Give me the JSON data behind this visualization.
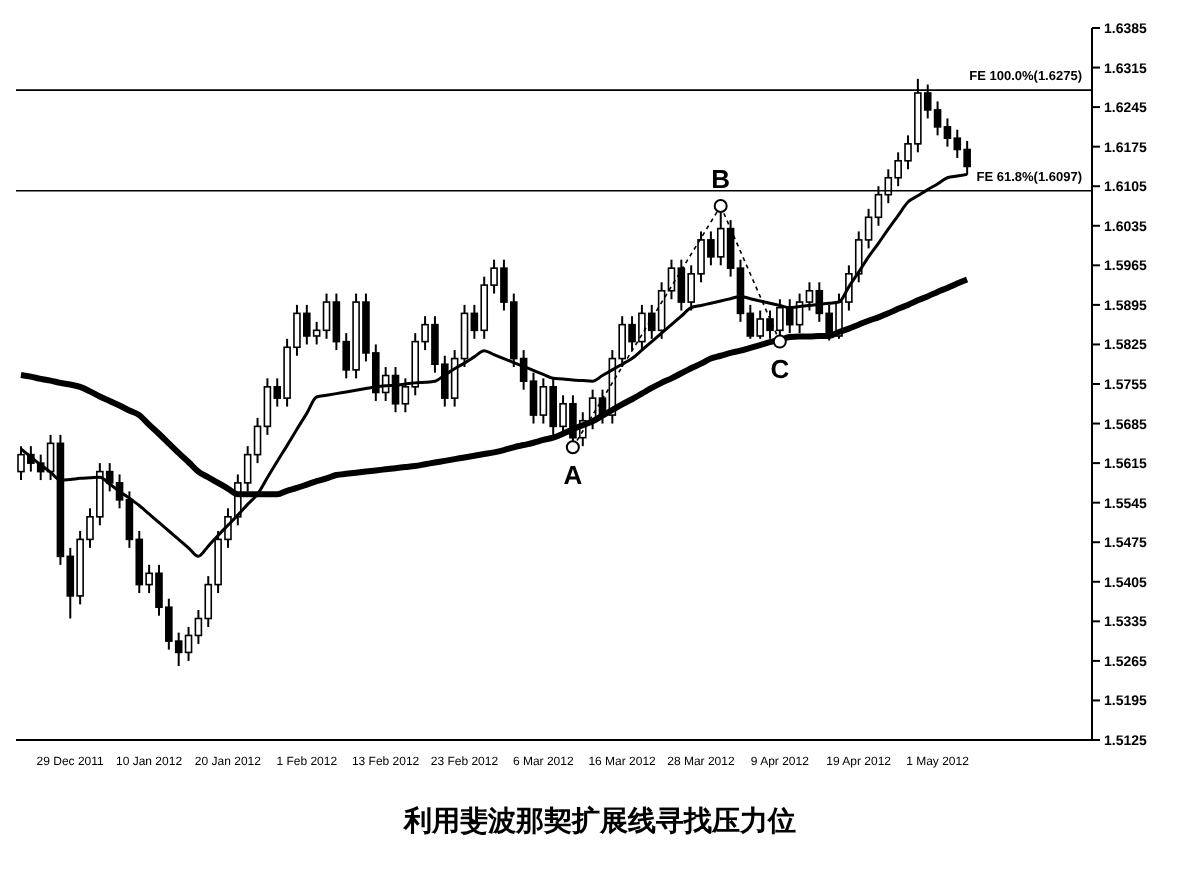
{
  "chart_data": {
    "type": "candlestick",
    "title": "利用斐波那契扩展线寻找压力位",
    "categories": [
      null,
      null,
      null,
      null,
      null,
      "29 Dec 2011",
      null,
      null,
      null,
      null,
      null,
      null,
      null,
      "10 Jan 2012",
      null,
      null,
      null,
      null,
      null,
      null,
      null,
      "20 Jan 2012",
      null,
      null,
      null,
      null,
      null,
      null,
      null,
      "1 Feb 2012",
      null,
      null,
      null,
      null,
      null,
      null,
      null,
      "13 Feb 2012",
      null,
      null,
      null,
      null,
      null,
      null,
      null,
      "23 Feb 2012",
      null,
      null,
      null,
      null,
      null,
      null,
      null,
      "6 Mar 2012",
      null,
      null,
      null,
      null,
      null,
      null,
      null,
      "16 Mar 2012",
      null,
      null,
      null,
      null,
      null,
      null,
      null,
      "28 Mar 2012",
      null,
      null,
      null,
      null,
      null,
      null,
      null,
      "9 Apr 2012",
      null,
      null,
      null,
      null,
      null,
      null,
      null,
      "19 Apr 2012",
      null,
      null,
      null,
      null,
      null,
      null,
      null,
      "1 May 2012",
      null,
      null,
      null
    ],
    "ohlc": [
      [
        1.56,
        1.5645,
        1.5585,
        1.563
      ],
      [
        1.563,
        1.5645,
        1.56,
        1.5615
      ],
      [
        1.5615,
        1.563,
        1.5585,
        1.56
      ],
      [
        1.56,
        1.5665,
        1.5585,
        1.565
      ],
      [
        1.565,
        1.5665,
        1.5435,
        1.545
      ],
      [
        1.545,
        1.5465,
        1.534,
        1.538
      ],
      [
        1.538,
        1.5495,
        1.5365,
        1.548
      ],
      [
        1.548,
        1.5535,
        1.5465,
        1.552
      ],
      [
        1.552,
        1.5615,
        1.5505,
        1.56
      ],
      [
        1.56,
        1.5615,
        1.5565,
        1.558
      ],
      [
        1.558,
        1.5595,
        1.5535,
        1.555
      ],
      [
        1.555,
        1.5565,
        1.5465,
        1.548
      ],
      [
        1.548,
        1.5495,
        1.5385,
        1.54
      ],
      [
        1.54,
        1.5435,
        1.5385,
        1.542
      ],
      [
        1.542,
        1.5435,
        1.5345,
        1.536
      ],
      [
        1.536,
        1.5375,
        1.5285,
        1.53
      ],
      [
        1.53,
        1.5315,
        1.5256,
        1.528
      ],
      [
        1.528,
        1.5325,
        1.5265,
        1.531
      ],
      [
        1.531,
        1.5355,
        1.5295,
        1.534
      ],
      [
        1.534,
        1.5415,
        1.5325,
        1.54
      ],
      [
        1.54,
        1.5495,
        1.5385,
        1.548
      ],
      [
        1.548,
        1.5535,
        1.5465,
        1.552
      ],
      [
        1.552,
        1.5595,
        1.5505,
        1.558
      ],
      [
        1.558,
        1.5645,
        1.5565,
        1.563
      ],
      [
        1.563,
        1.5695,
        1.5615,
        1.568
      ],
      [
        1.568,
        1.5765,
        1.5665,
        1.575
      ],
      [
        1.575,
        1.5765,
        1.5715,
        1.573
      ],
      [
        1.573,
        1.5835,
        1.5715,
        1.582
      ],
      [
        1.582,
        1.5895,
        1.5805,
        1.588
      ],
      [
        1.588,
        1.5895,
        1.5825,
        1.584
      ],
      [
        1.584,
        1.5865,
        1.5825,
        1.585
      ],
      [
        1.585,
        1.5915,
        1.5835,
        1.59
      ],
      [
        1.59,
        1.5915,
        1.5815,
        1.583
      ],
      [
        1.583,
        1.5845,
        1.5765,
        1.578
      ],
      [
        1.578,
        1.5915,
        1.5765,
        1.59
      ],
      [
        1.59,
        1.5915,
        1.5795,
        1.581
      ],
      [
        1.581,
        1.5825,
        1.5725,
        1.574
      ],
      [
        1.574,
        1.5785,
        1.5725,
        1.577
      ],
      [
        1.577,
        1.5785,
        1.5705,
        1.572
      ],
      [
        1.572,
        1.5765,
        1.5705,
        1.575
      ],
      [
        1.575,
        1.5845,
        1.5735,
        1.583
      ],
      [
        1.583,
        1.5875,
        1.5815,
        1.586
      ],
      [
        1.586,
        1.5875,
        1.5775,
        1.579
      ],
      [
        1.579,
        1.5805,
        1.5715,
        1.573
      ],
      [
        1.573,
        1.5815,
        1.5715,
        1.58
      ],
      [
        1.58,
        1.5895,
        1.5785,
        1.588
      ],
      [
        1.588,
        1.5895,
        1.5835,
        1.585
      ],
      [
        1.585,
        1.5945,
        1.5835,
        1.593
      ],
      [
        1.593,
        1.5975,
        1.5915,
        1.596
      ],
      [
        1.596,
        1.5975,
        1.5885,
        1.59
      ],
      [
        1.59,
        1.5915,
        1.5785,
        1.58
      ],
      [
        1.58,
        1.5815,
        1.5745,
        1.576
      ],
      [
        1.576,
        1.5775,
        1.5685,
        1.57
      ],
      [
        1.57,
        1.5765,
        1.5685,
        1.575
      ],
      [
        1.575,
        1.5765,
        1.5665,
        1.568
      ],
      [
        1.568,
        1.5735,
        1.5665,
        1.572
      ],
      [
        1.572,
        1.5735,
        1.5643,
        1.566
      ],
      [
        1.566,
        1.5705,
        1.5645,
        1.569
      ],
      [
        1.569,
        1.5745,
        1.5675,
        1.573
      ],
      [
        1.573,
        1.5745,
        1.5685,
        1.57
      ],
      [
        1.57,
        1.5815,
        1.5685,
        1.58
      ],
      [
        1.58,
        1.5875,
        1.5785,
        1.586
      ],
      [
        1.586,
        1.5875,
        1.5815,
        1.583
      ],
      [
        1.583,
        1.5895,
        1.5815,
        1.588
      ],
      [
        1.588,
        1.5895,
        1.5835,
        1.585
      ],
      [
        1.585,
        1.5935,
        1.5835,
        1.592
      ],
      [
        1.592,
        1.5975,
        1.5905,
        1.596
      ],
      [
        1.596,
        1.5975,
        1.5885,
        1.59
      ],
      [
        1.59,
        1.5965,
        1.5885,
        1.595
      ],
      [
        1.595,
        1.6025,
        1.5935,
        1.601
      ],
      [
        1.601,
        1.6025,
        1.5965,
        1.598
      ],
      [
        1.598,
        1.607,
        1.5965,
        1.603
      ],
      [
        1.603,
        1.6045,
        1.5945,
        1.596
      ],
      [
        1.596,
        1.5975,
        1.5865,
        1.588
      ],
      [
        1.588,
        1.5895,
        1.5835,
        1.584
      ],
      [
        1.584,
        1.5885,
        1.5835,
        1.587
      ],
      [
        1.587,
        1.5885,
        1.5835,
        1.585
      ],
      [
        1.585,
        1.5905,
        1.583,
        1.589
      ],
      [
        1.589,
        1.5905,
        1.5845,
        1.586
      ],
      [
        1.586,
        1.5915,
        1.5845,
        1.59
      ],
      [
        1.59,
        1.5935,
        1.5885,
        1.592
      ],
      [
        1.592,
        1.5935,
        1.5865,
        1.588
      ],
      [
        1.588,
        1.5895,
        1.5832,
        1.584
      ],
      [
        1.584,
        1.5915,
        1.5835,
        1.59
      ],
      [
        1.59,
        1.5965,
        1.5885,
        1.595
      ],
      [
        1.595,
        1.6025,
        1.5935,
        1.601
      ],
      [
        1.601,
        1.6065,
        1.5995,
        1.605
      ],
      [
        1.605,
        1.6105,
        1.6035,
        1.609
      ],
      [
        1.609,
        1.6135,
        1.6075,
        1.612
      ],
      [
        1.612,
        1.6165,
        1.6105,
        1.615
      ],
      [
        1.615,
        1.6195,
        1.6135,
        1.618
      ],
      [
        1.618,
        1.6295,
        1.6165,
        1.627
      ],
      [
        1.627,
        1.6285,
        1.6225,
        1.624
      ],
      [
        1.624,
        1.6255,
        1.6195,
        1.621
      ],
      [
        1.621,
        1.6225,
        1.6175,
        1.619
      ],
      [
        1.619,
        1.6205,
        1.6155,
        1.617
      ],
      [
        1.617,
        1.6185,
        1.6125,
        1.614
      ]
    ],
    "color": "#000000",
    "series": [
      {
        "type": "line",
        "color": "#000000",
        "values": [
          1.564,
          1.5626,
          1.5612,
          1.5599,
          1.5585,
          1.5586,
          1.5588,
          1.5589,
          1.559,
          1.5578,
          1.5565,
          1.5553,
          1.554,
          1.5525,
          1.551,
          1.5495,
          1.548,
          1.5465,
          1.545,
          1.5468,
          1.5487,
          1.5505,
          1.5523,
          1.5542,
          1.556,
          1.5589,
          1.5618,
          1.5646,
          1.5675,
          1.5703,
          1.5732,
          1.5735,
          1.5738,
          1.5741,
          1.5744,
          1.5747,
          1.575,
          1.5752,
          1.5753,
          1.5755,
          1.5757,
          1.5758,
          1.576,
          1.5771,
          1.5782,
          1.5792,
          1.5803,
          1.5814,
          1.5807,
          1.58,
          1.5793,
          1.5786,
          1.5779,
          1.5772,
          1.5765,
          1.5764,
          1.5762,
          1.5761,
          1.576,
          1.577,
          1.578,
          1.579,
          1.58,
          1.5815,
          1.583,
          1.5845,
          1.586,
          1.5875,
          1.589,
          1.5894,
          1.5898,
          1.5902,
          1.5906,
          1.591,
          1.5906,
          1.5902,
          1.5898,
          1.5894,
          1.589,
          1.5892,
          1.5894,
          1.5896,
          1.5898,
          1.59,
          1.5927,
          1.5953,
          1.598,
          1.6004,
          1.6029,
          1.6053,
          1.6077,
          1.6088,
          1.6099,
          1.6109,
          1.612,
          1.6123,
          1.6126
        ]
      },
      {
        "type": "line",
        "color": "#000000",
        "values": [
          1.5771,
          1.5768,
          1.5764,
          1.5761,
          1.5757,
          1.5754,
          1.575,
          1.5742,
          1.5733,
          1.5725,
          1.5717,
          1.5708,
          1.57,
          1.5683,
          1.5667,
          1.565,
          1.5633,
          1.5617,
          1.56,
          1.559,
          1.558,
          1.557,
          1.556,
          1.556,
          1.556,
          1.556,
          1.556,
          1.5566,
          1.5571,
          1.5577,
          1.5583,
          1.5588,
          1.5594,
          1.5596,
          1.5598,
          1.56,
          1.5602,
          1.5604,
          1.5606,
          1.5608,
          1.561,
          1.5613,
          1.5616,
          1.5619,
          1.5622,
          1.5625,
          1.5628,
          1.5631,
          1.5634,
          1.5638,
          1.5643,
          1.5647,
          1.5651,
          1.5656,
          1.566,
          1.5667,
          1.5675,
          1.5682,
          1.5689,
          1.5699,
          1.5709,
          1.5719,
          1.5728,
          1.5738,
          1.5748,
          1.5757,
          1.5765,
          1.5774,
          1.5783,
          1.5791,
          1.58,
          1.5805,
          1.581,
          1.5814,
          1.5819,
          1.5824,
          1.5829,
          1.5833,
          1.5838,
          1.5839,
          1.5839,
          1.584,
          1.584,
          1.5847,
          1.5853,
          1.586,
          1.5867,
          1.5873,
          1.588,
          1.5888,
          1.5895,
          1.5903,
          1.591,
          1.5918,
          1.5925,
          1.5933,
          1.594
        ]
      }
    ],
    "ylim": [
      1.5125,
      1.6385
    ],
    "yticks": [
      1.5125,
      1.5195,
      1.5265,
      1.5335,
      1.5405,
      1.5475,
      1.5545,
      1.5615,
      1.5685,
      1.5755,
      1.5825,
      1.5895,
      1.5965,
      1.6035,
      1.6105,
      1.6175,
      1.6245,
      1.6315,
      1.6385
    ],
    "ref_lines": [
      {
        "axis": "y",
        "value": 1.6275,
        "label": "FE 100.0%(1.6275)",
        "color": "#000000"
      },
      {
        "axis": "y",
        "value": 1.6097,
        "label": "FE 61.8%(1.6097)",
        "color": "#000000"
      }
    ],
    "annotations": [
      {
        "text": "A",
        "y": 1.5643
      },
      {
        "text": "B",
        "y": 1.607
      },
      {
        "text": "C",
        "y": 1.583
      }
    ],
    "grid": false,
    "legend": false
  }
}
